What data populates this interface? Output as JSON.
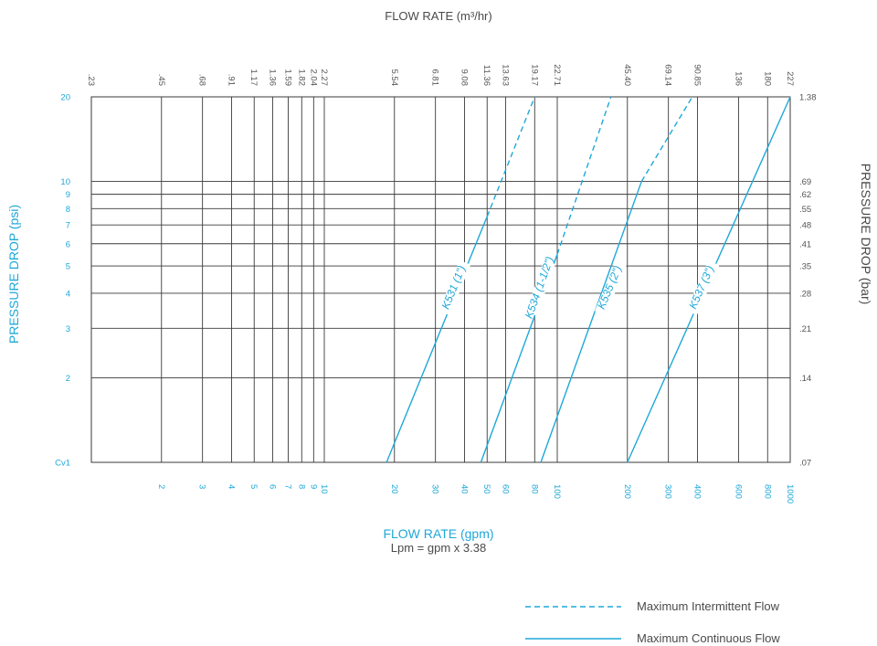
{
  "colors": {
    "accent": "#1fa8d8",
    "grid": "#3a3a3a",
    "text_dark": "#4a4a4a",
    "text_tick": "#555555"
  },
  "labels": {
    "top_title": "FLOW RATE (m³/hr)",
    "bottom_title": "FLOW RATE (gpm)",
    "bottom_subtitle": "Lpm = gpm x 3.38",
    "left_title": "PRESSURE DROP (psi)",
    "right_title": "PRESSURE DROP (bar)"
  },
  "legend": {
    "intermittent": "Maximum Intermittent Flow",
    "continuous": "Maximum Continuous Flow"
  },
  "chart_data": {
    "type": "line",
    "x_scale": "log",
    "y_scale": "log",
    "xlim": [
      1,
      1000
    ],
    "ylim": [
      1,
      20
    ],
    "grid": true,
    "legend_position": "bottom-right",
    "x_ticks_gpm": [
      {
        "value": 2,
        "label": "2"
      },
      {
        "value": 3,
        "label": "3"
      },
      {
        "value": 4,
        "label": "4"
      },
      {
        "value": 5,
        "label": "5"
      },
      {
        "value": 6,
        "label": "6"
      },
      {
        "value": 7,
        "label": "7"
      },
      {
        "value": 8,
        "label": "8"
      },
      {
        "value": 9,
        "label": "9"
      },
      {
        "value": 10,
        "label": "10"
      },
      {
        "value": 20,
        "label": "20"
      },
      {
        "value": 30,
        "label": "30"
      },
      {
        "value": 40,
        "label": "40"
      },
      {
        "value": 50,
        "label": "50"
      },
      {
        "value": 60,
        "label": "60"
      },
      {
        "value": 80,
        "label": "80"
      },
      {
        "value": 100,
        "label": "100"
      },
      {
        "value": 200,
        "label": "200"
      },
      {
        "value": 300,
        "label": "300"
      },
      {
        "value": 400,
        "label": "400"
      },
      {
        "value": 600,
        "label": "600"
      },
      {
        "value": 800,
        "label": "800"
      },
      {
        "value": 1000,
        "label": "1000"
      }
    ],
    "x_ticks_m3hr": [
      {
        "value": 1,
        "label": ".23"
      },
      {
        "value": 2,
        "label": ".45"
      },
      {
        "value": 3,
        "label": ".68"
      },
      {
        "value": 4,
        "label": ".91"
      },
      {
        "value": 5,
        "label": "1.17"
      },
      {
        "value": 6,
        "label": "1.36"
      },
      {
        "value": 7,
        "label": "1.59"
      },
      {
        "value": 8,
        "label": "1.82"
      },
      {
        "value": 9,
        "label": "2.04"
      },
      {
        "value": 10,
        "label": "2.27"
      },
      {
        "value": 20,
        "label": "5.54"
      },
      {
        "value": 30,
        "label": "6.81"
      },
      {
        "value": 40,
        "label": "9.08"
      },
      {
        "value": 50,
        "label": "11.36"
      },
      {
        "value": 60,
        "label": "13.63"
      },
      {
        "value": 80,
        "label": "19.17"
      },
      {
        "value": 100,
        "label": "22.71"
      },
      {
        "value": 200,
        "label": "45.40"
      },
      {
        "value": 300,
        "label": "69.14"
      },
      {
        "value": 400,
        "label": "90.85"
      },
      {
        "value": 600,
        "label": "136"
      },
      {
        "value": 800,
        "label": "180"
      },
      {
        "value": 1000,
        "label": "227"
      }
    ],
    "y_ticks_psi": [
      {
        "value": 1,
        "label": "Cv1"
      },
      {
        "value": 2,
        "label": "2"
      },
      {
        "value": 3,
        "label": "3"
      },
      {
        "value": 4,
        "label": "4"
      },
      {
        "value": 5,
        "label": "5"
      },
      {
        "value": 6,
        "label": "6"
      },
      {
        "value": 7,
        "label": "7"
      },
      {
        "value": 8,
        "label": "8"
      },
      {
        "value": 9,
        "label": "9"
      },
      {
        "value": 10,
        "label": "10"
      },
      {
        "value": 20,
        "label": "20"
      }
    ],
    "y_ticks_bar": [
      {
        "value": 1,
        "label": ".07"
      },
      {
        "value": 2,
        "label": ".14"
      },
      {
        "value": 3,
        "label": ".21"
      },
      {
        "value": 4,
        "label": ".28"
      },
      {
        "value": 5,
        "label": ".35"
      },
      {
        "value": 6,
        "label": ".41"
      },
      {
        "value": 7,
        "label": ".48"
      },
      {
        "value": 8,
        "label": ".55"
      },
      {
        "value": 9,
        "label": ".62"
      },
      {
        "value": 10,
        "label": ".69"
      },
      {
        "value": 20,
        "label": "1.38"
      }
    ],
    "series": [
      {
        "name": "K531 (1\")",
        "continuous": [
          [
            18.5,
            1
          ],
          [
            50,
            7.5
          ]
        ],
        "intermittent": [
          [
            50,
            7.5
          ],
          [
            80,
            20
          ]
        ]
      },
      {
        "name": "K534 (1-1/2\")",
        "continuous": [
          [
            47,
            1
          ],
          [
            100,
            5.5
          ]
        ],
        "intermittent": [
          [
            100,
            5.5
          ],
          [
            170,
            20
          ]
        ]
      },
      {
        "name": "K535 (2\")",
        "continuous": [
          [
            85,
            1
          ],
          [
            230,
            10
          ]
        ],
        "intermittent": [
          [
            230,
            10
          ],
          [
            380,
            20
          ]
        ]
      },
      {
        "name": "K537 (3\")",
        "continuous": [
          [
            200,
            1
          ],
          [
            1000,
            20
          ]
        ],
        "intermittent": []
      }
    ]
  }
}
